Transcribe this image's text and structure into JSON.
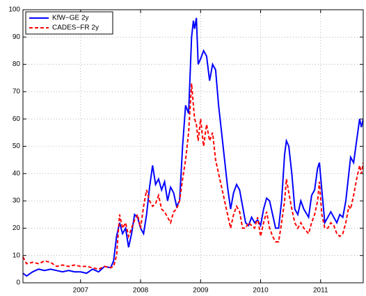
{
  "chart_data": {
    "type": "line",
    "x": [
      2006.04,
      2006.1,
      2006.2,
      2006.3,
      2006.4,
      2006.5,
      2006.6,
      2006.7,
      2006.8,
      2006.9,
      2007.0,
      2007.1,
      2007.2,
      2007.3,
      2007.4,
      2007.5,
      2007.55,
      2007.6,
      2007.65,
      2007.7,
      2007.75,
      2007.8,
      2007.85,
      2007.9,
      2007.95,
      2008.0,
      2008.05,
      2008.1,
      2008.15,
      2008.2,
      2008.25,
      2008.3,
      2008.35,
      2008.4,
      2008.45,
      2008.5,
      2008.55,
      2008.6,
      2008.65,
      2008.7,
      2008.75,
      2008.8,
      2008.85,
      2008.88,
      2008.9,
      2008.93,
      2008.96,
      2009.0,
      2009.05,
      2009.1,
      2009.15,
      2009.2,
      2009.25,
      2009.3,
      2009.35,
      2009.4,
      2009.45,
      2009.5,
      2009.55,
      2009.6,
      2009.65,
      2009.7,
      2009.75,
      2009.8,
      2009.85,
      2009.9,
      2009.95,
      2010.0,
      2010.05,
      2010.1,
      2010.15,
      2010.2,
      2010.25,
      2010.3,
      2010.35,
      2010.4,
      2010.43,
      2010.47,
      2010.52,
      2010.57,
      2010.62,
      2010.67,
      2010.72,
      2010.8,
      2010.85,
      2010.9,
      2010.95,
      2010.98,
      2011.02,
      2011.07,
      2011.12,
      2011.17,
      2011.22,
      2011.27,
      2011.32,
      2011.37,
      2011.42,
      2011.47,
      2011.5,
      2011.55,
      2011.6,
      2011.65,
      2011.68,
      2011.71
    ],
    "series": [
      {
        "name": "KfW−GE 2y",
        "color": "#0000ff",
        "dash": false,
        "values": [
          3.5,
          2.5,
          4,
          5,
          4.5,
          5,
          4.5,
          4,
          4.5,
          4,
          4,
          3.5,
          5,
          4,
          6,
          5.5,
          8,
          17,
          22,
          18,
          20,
          13,
          18,
          25,
          24,
          20,
          18,
          25,
          35,
          43,
          36,
          38,
          34,
          37,
          30,
          35,
          33,
          28,
          30,
          50,
          65,
          62,
          90,
          96,
          93,
          97,
          80,
          82,
          85,
          83,
          74,
          80,
          78,
          65,
          55,
          45,
          35,
          27,
          33,
          36,
          34,
          28,
          22,
          21,
          24,
          22,
          23,
          21,
          27,
          31,
          30,
          25,
          20,
          20,
          30,
          47,
          52,
          50,
          40,
          27,
          25,
          30,
          27,
          24,
          32,
          34,
          42,
          44,
          34,
          22,
          24,
          26,
          24,
          22,
          25,
          24,
          30,
          40,
          46,
          44,
          52,
          60,
          57,
          60
        ]
      },
      {
        "name": "CADES−FR 2y",
        "color": "#ff0000",
        "dash": true,
        "values": [
          9.5,
          7,
          7.5,
          7,
          8,
          7.5,
          6,
          6.5,
          6,
          6.5,
          6,
          6,
          5.5,
          5,
          6,
          5.5,
          6,
          10,
          25,
          20,
          22,
          17,
          20,
          23,
          25,
          20,
          28,
          34,
          30,
          28,
          29,
          32,
          27,
          26,
          24,
          22,
          26,
          27,
          30,
          38,
          45,
          55,
          73,
          65,
          60,
          58,
          52,
          60,
          50,
          58,
          52,
          55,
          45,
          40,
          35,
          30,
          25,
          20,
          25,
          28,
          26,
          20,
          20,
          22,
          21,
          20,
          24,
          17,
          22,
          26,
          20,
          17,
          15,
          15,
          22,
          30,
          38,
          33,
          27,
          22,
          20,
          22,
          20,
          18,
          22,
          25,
          30,
          37,
          25,
          20,
          20,
          22,
          21,
          18,
          17,
          18,
          22,
          28,
          27,
          32,
          38,
          43,
          40,
          44
        ]
      }
    ],
    "xlim": [
      2006.04,
      2011.71
    ],
    "xticks": [
      2007,
      2008,
      2009,
      2010,
      2011
    ],
    "ylim": [
      0,
      100
    ],
    "yticks": [
      0,
      10,
      20,
      30,
      40,
      50,
      60,
      70,
      80,
      90,
      100
    ],
    "grid": true,
    "legend": "top-left"
  }
}
